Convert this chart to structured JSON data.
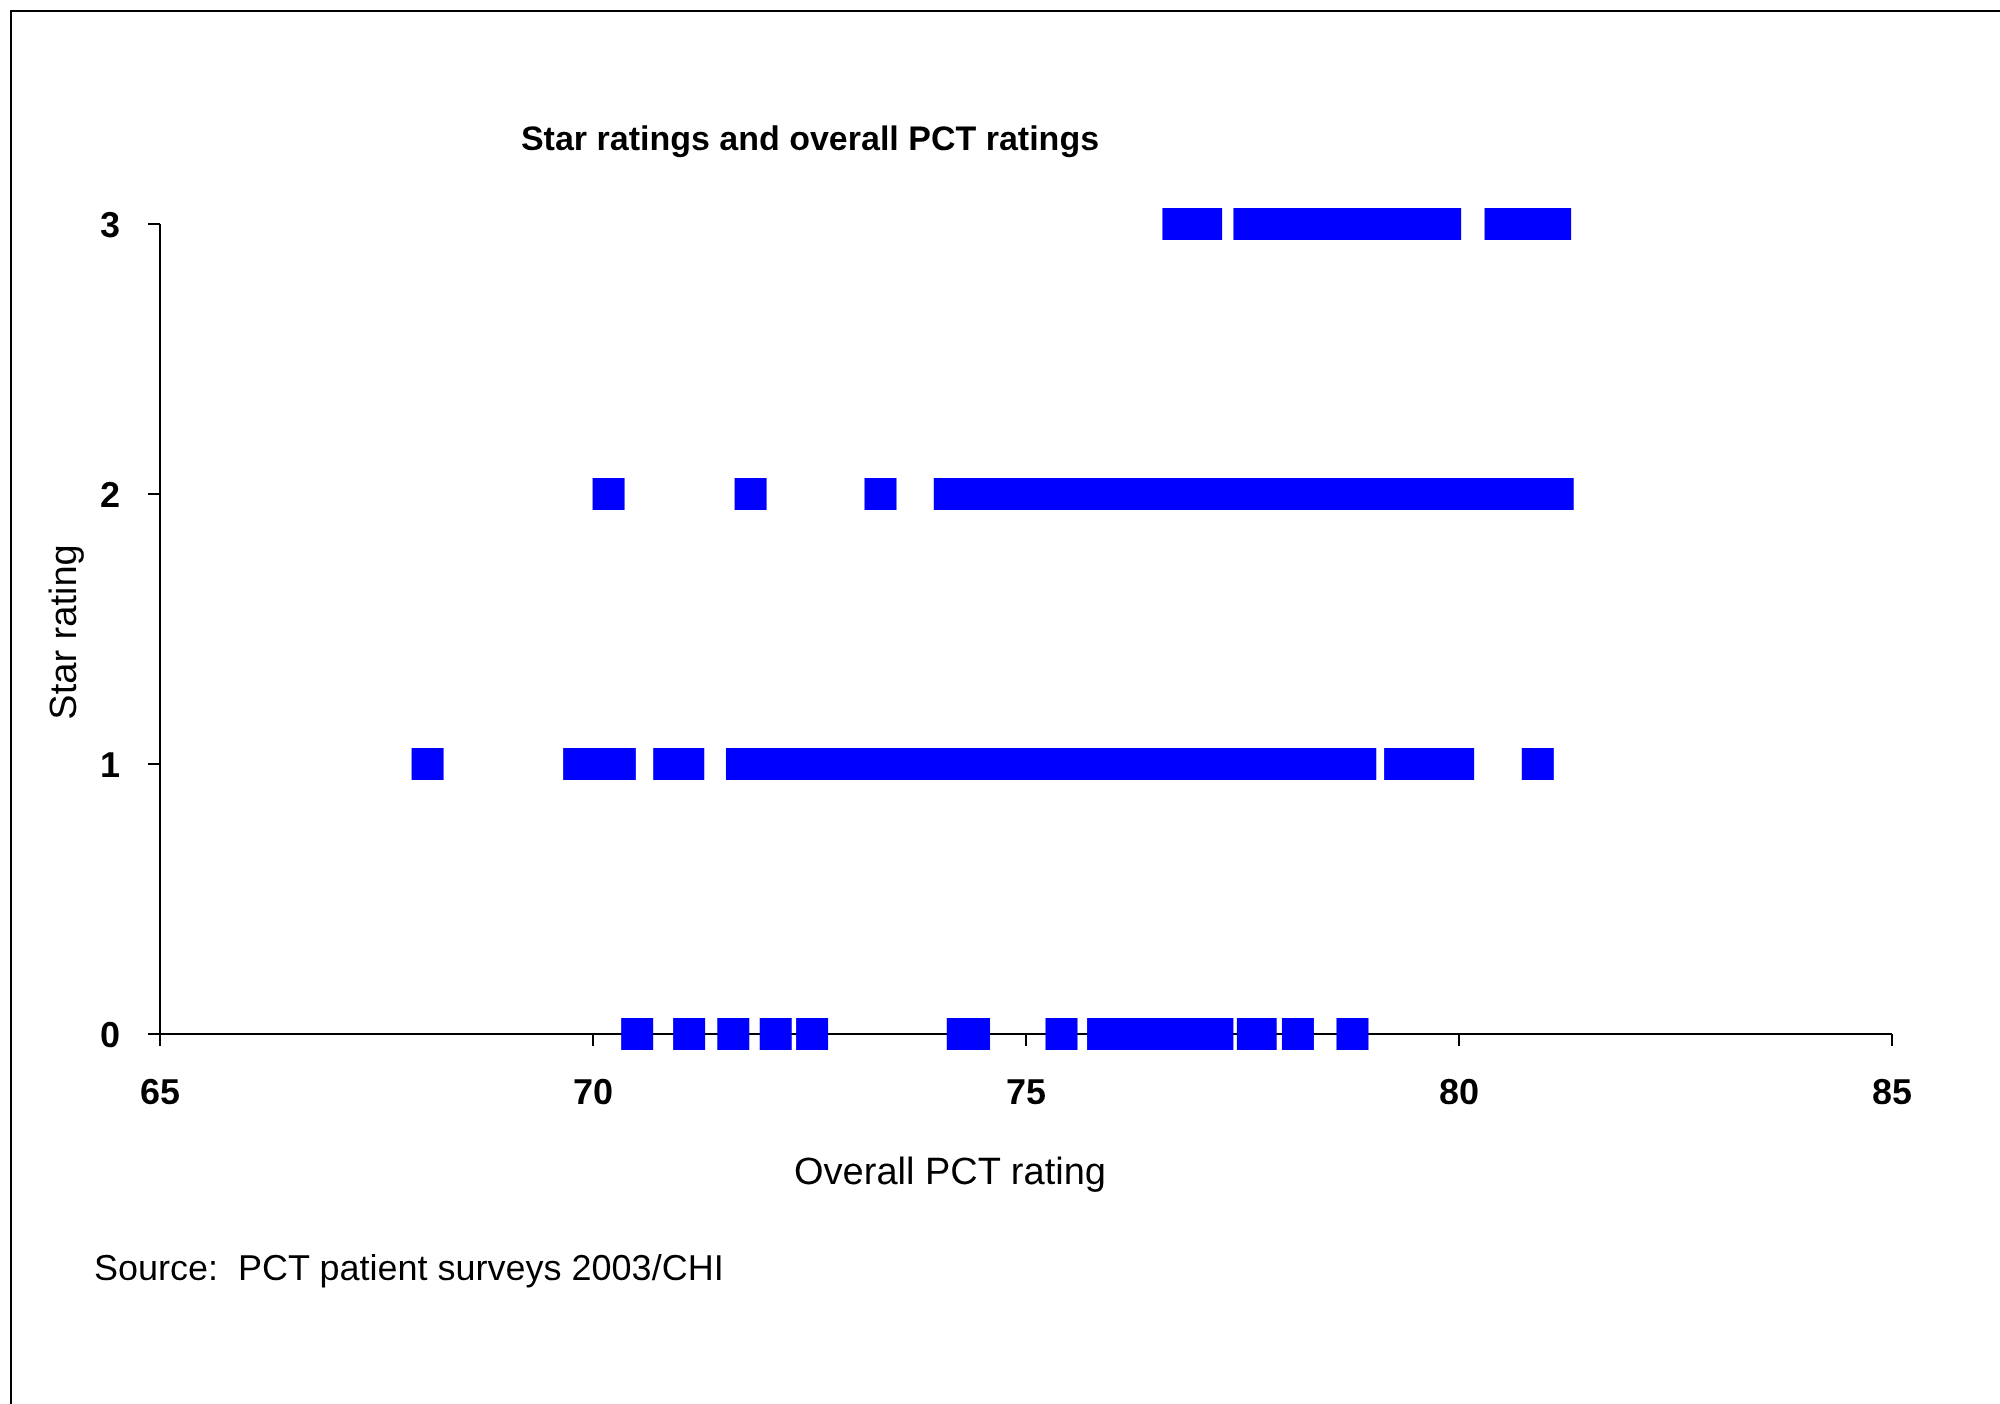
{
  "chart_data": {
    "type": "scatter",
    "title": "Star ratings and overall PCT ratings",
    "xlabel": "Overall PCT rating",
    "ylabel": "Star rating",
    "annotations": [
      "Source:  PCT patient surveys 2003/CHI"
    ],
    "x": [
      70.51,
      71.11,
      71.62,
      72.11,
      72.53,
      74.27,
      74.4,
      75.41,
      75.89,
      76.22,
      76.55,
      76.88,
      77.21,
      77.62,
      77.71,
      78.14,
      78.77,
      68.09,
      69.84,
      70.07,
      70.31,
      70.88,
      71.1,
      71.72,
      72.0,
      72.3,
      72.6,
      72.9,
      73.2,
      73.5,
      73.8,
      74.1,
      74.4,
      74.7,
      75.0,
      75.3,
      75.6,
      75.9,
      76.2,
      76.5,
      76.8,
      77.1,
      77.4,
      77.7,
      78.0,
      78.3,
      78.6,
      78.86,
      79.32,
      79.65,
      79.99,
      80.91,
      70.18,
      71.82,
      73.32,
      74.12,
      74.4,
      74.7,
      75.0,
      75.3,
      75.6,
      75.9,
      76.2,
      76.5,
      76.8,
      77.1,
      77.4,
      77.7,
      78.0,
      78.3,
      78.6,
      78.9,
      79.2,
      79.5,
      79.8,
      80.1,
      80.4,
      80.7,
      80.9,
      81.14,
      76.76,
      77.08,
      77.58,
      77.9,
      78.2,
      78.5,
      78.8,
      79.1,
      79.4,
      79.6,
      79.84,
      80.48,
      80.8,
      81.11
    ],
    "values": [
      0,
      0,
      0,
      0,
      0,
      0,
      0,
      0,
      0,
      0,
      0,
      0,
      0,
      0,
      0,
      0,
      0,
      1,
      1,
      1,
      1,
      1,
      1,
      1,
      1,
      1,
      1,
      1,
      1,
      1,
      1,
      1,
      1,
      1,
      1,
      1,
      1,
      1,
      1,
      1,
      1,
      1,
      1,
      1,
      1,
      1,
      1,
      1,
      1,
      1,
      1,
      1,
      2,
      2,
      2,
      2,
      2,
      2,
      2,
      2,
      2,
      2,
      2,
      2,
      2,
      2,
      2,
      2,
      2,
      2,
      2,
      2,
      2,
      2,
      2,
      2,
      2,
      2,
      2,
      2,
      3,
      3,
      3,
      3,
      3,
      3,
      3,
      3,
      3,
      3,
      3,
      3,
      3,
      3
    ],
    "color": "#0000ff",
    "marker": "square",
    "xlim": [
      65,
      85
    ],
    "xticks": [
      65,
      70,
      75,
      80,
      85
    ],
    "ylim": [
      0,
      3
    ],
    "yticks": [
      0,
      1,
      2,
      3
    ],
    "grid": false,
    "legend": false
  }
}
